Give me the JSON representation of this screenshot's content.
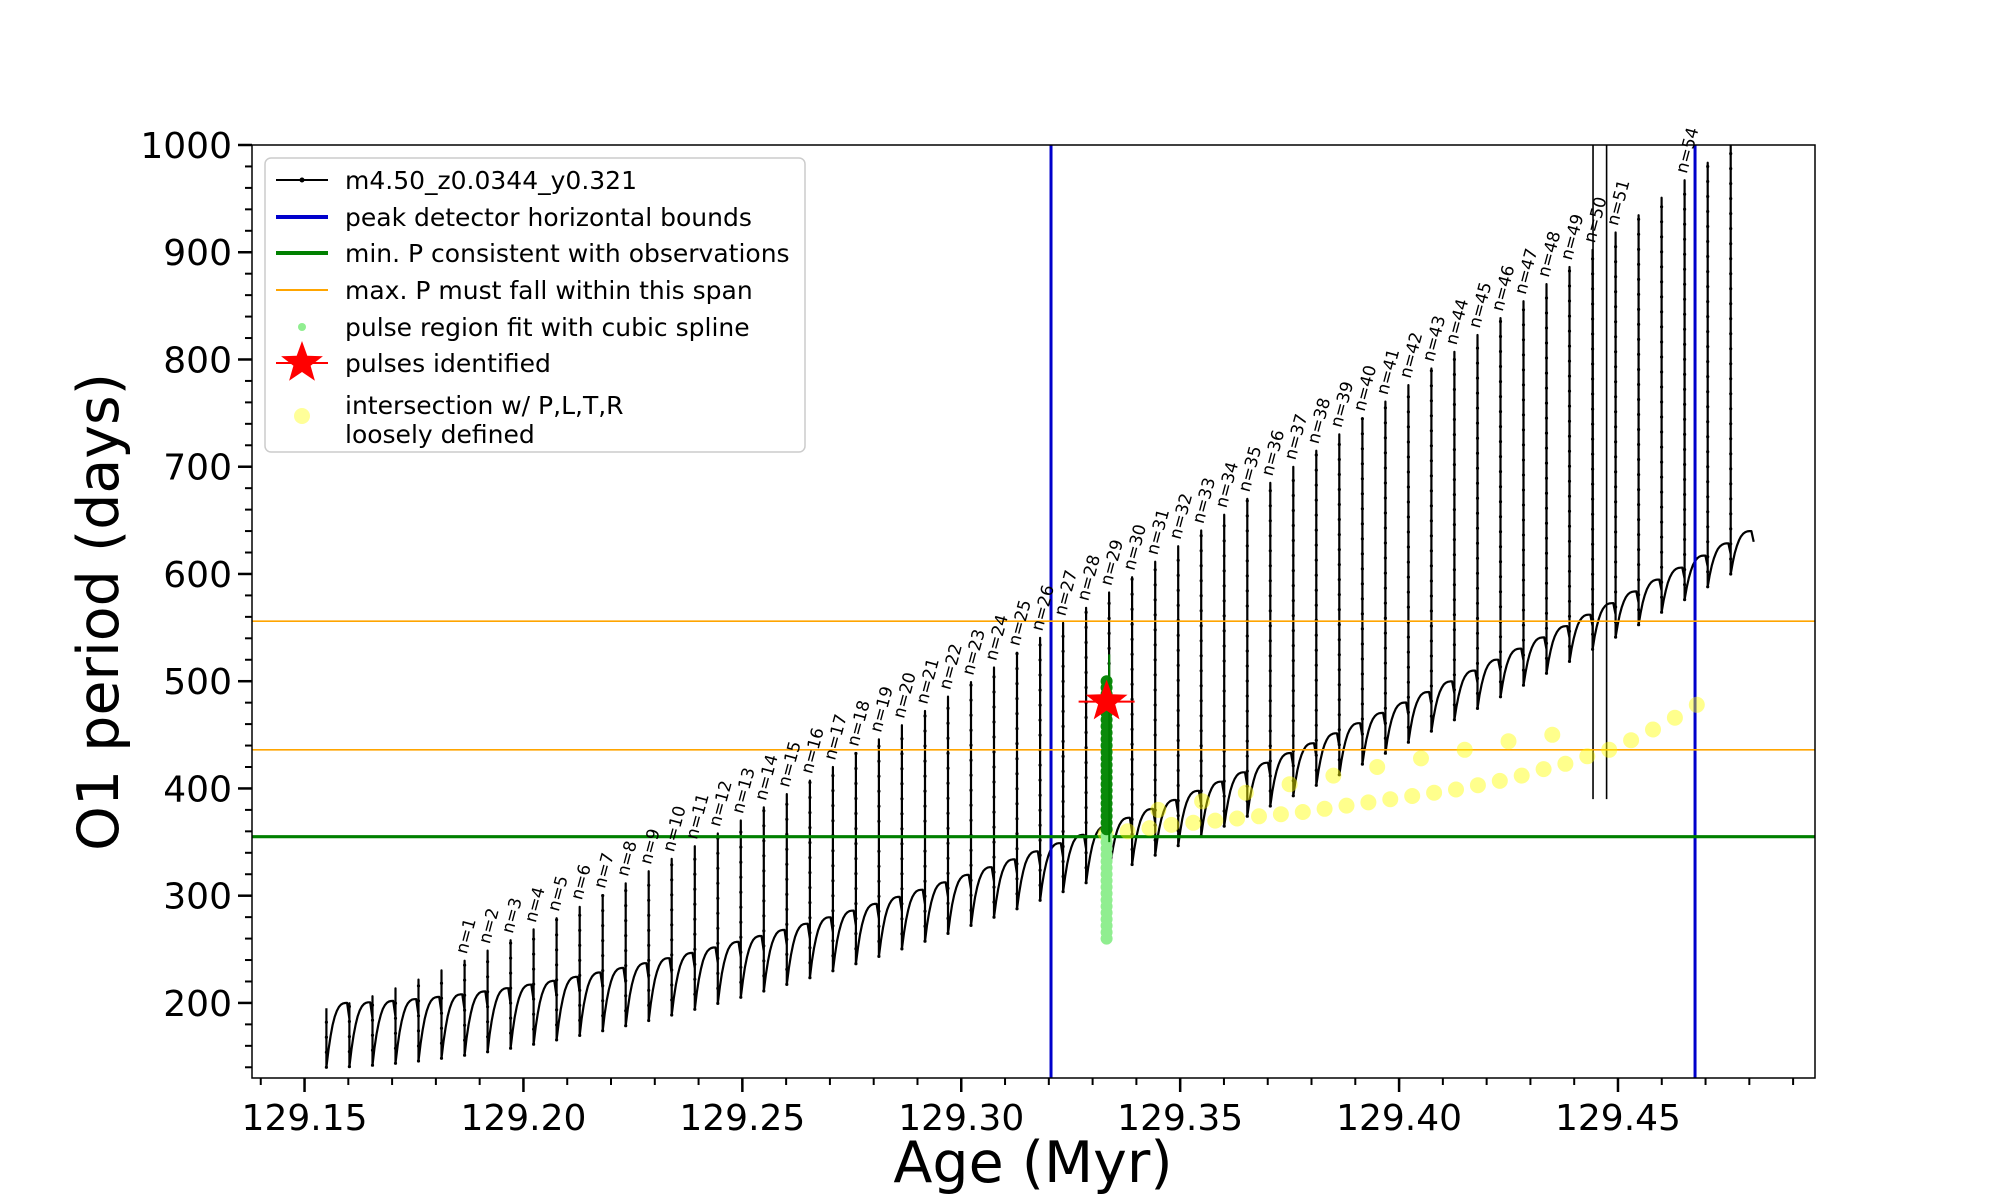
{
  "chart_data": {
    "type": "scatter",
    "title": "",
    "xlabel": "Age (Myr)",
    "ylabel": "O1 period (days)",
    "xlim": [
      129.138,
      129.495
    ],
    "ylim": [
      130,
      1000
    ],
    "xticks": [
      129.15,
      129.2,
      129.25,
      129.3,
      129.35,
      129.4,
      129.45
    ],
    "xtick_labels": [
      "129.15",
      "129.20",
      "129.25",
      "129.30",
      "129.35",
      "129.40",
      "129.45"
    ],
    "yticks": [
      200,
      300,
      400,
      500,
      600,
      700,
      800,
      900,
      1000
    ],
    "ytick_labels": [
      "200",
      "300",
      "400",
      "500",
      "600",
      "700",
      "800",
      "900",
      "1000"
    ],
    "grid": false,
    "legend_position": "top-left",
    "legend": [
      {
        "label": "m4.50_z0.0344_y0.321",
        "kind": "line-marker",
        "color": "#000000"
      },
      {
        "label": "peak detector horizontal bounds",
        "kind": "line",
        "color": "#0000cc"
      },
      {
        "label": "min. P consistent with observations",
        "kind": "line",
        "color": "#008000"
      },
      {
        "label": "max. P must fall within this span",
        "kind": "line",
        "color": "#ffa500"
      },
      {
        "label": "pulse region fit with cubic spline",
        "kind": "dot",
        "color": "#90ee90"
      },
      {
        "label": "pulses identified",
        "kind": "star",
        "color": "#ff0000"
      },
      {
        "label": "intersection w/ P,L,T,R\nloosely defined",
        "kind": "dot",
        "color": "#ffff99"
      }
    ],
    "vlines": {
      "color": "#0000cc",
      "x": [
        129.3205,
        129.4676
      ]
    },
    "hline_min": {
      "color": "#008000",
      "y": 355
    },
    "hlines_span": {
      "color": "#ffa500",
      "y": [
        436,
        556
      ]
    },
    "pulse_labels": [
      "n=1",
      "n=2",
      "n=3",
      "n=4",
      "n=5",
      "n=6",
      "n=7",
      "n=8",
      "n=9",
      "n=10",
      "n=11",
      "n=12",
      "n=13",
      "n=14",
      "n=15",
      "n=16",
      "n=17",
      "n=18",
      "n=19",
      "n=20",
      "n=21",
      "n=22",
      "n=23",
      "n=24",
      "n=25",
      "n=26",
      "n=27",
      "n=28",
      "n=29",
      "n=30",
      "n=31",
      "n=32",
      "n=33",
      "n=34",
      "n=35",
      "n=36",
      "n=37",
      "n=38",
      "n=39",
      "n=40",
      "n=41",
      "n=42",
      "n=43",
      "n=44",
      "n=45",
      "n=46",
      "n=47",
      "n=48",
      "n=49",
      "n=50",
      "n=51",
      "n=54"
    ],
    "pulses": {
      "age_start": 129.155,
      "age_end": 129.481,
      "count": 62,
      "base_start": 140,
      "base_end": 600,
      "peak_start": 200,
      "peak_end": 640,
      "spike_start": 195,
      "spike_end": 1000
    },
    "identified_pulse": {
      "x": 129.3332,
      "y": 481
    },
    "spline_region": {
      "x": 129.3332,
      "y_min": 260,
      "y_max": 500
    },
    "intersections": [
      {
        "x": 129.333,
        "y": 358
      },
      {
        "x": 129.338,
        "y": 360
      },
      {
        "x": 129.343,
        "y": 363
      },
      {
        "x": 129.348,
        "y": 366
      },
      {
        "x": 129.353,
        "y": 368
      },
      {
        "x": 129.358,
        "y": 370
      },
      {
        "x": 129.363,
        "y": 372
      },
      {
        "x": 129.368,
        "y": 374
      },
      {
        "x": 129.373,
        "y": 376
      },
      {
        "x": 129.378,
        "y": 378
      },
      {
        "x": 129.383,
        "y": 381
      },
      {
        "x": 129.388,
        "y": 384
      },
      {
        "x": 129.393,
        "y": 387
      },
      {
        "x": 129.398,
        "y": 390
      },
      {
        "x": 129.403,
        "y": 393
      },
      {
        "x": 129.408,
        "y": 396
      },
      {
        "x": 129.413,
        "y": 399
      },
      {
        "x": 129.418,
        "y": 403
      },
      {
        "x": 129.423,
        "y": 407
      },
      {
        "x": 129.428,
        "y": 412
      },
      {
        "x": 129.433,
        "y": 418
      },
      {
        "x": 129.438,
        "y": 423
      },
      {
        "x": 129.443,
        "y": 430
      },
      {
        "x": 129.448,
        "y": 436
      },
      {
        "x": 129.453,
        "y": 445
      },
      {
        "x": 129.458,
        "y": 455
      },
      {
        "x": 129.463,
        "y": 466
      },
      {
        "x": 129.468,
        "y": 478
      },
      {
        "x": 129.345,
        "y": 380
      },
      {
        "x": 129.355,
        "y": 388
      },
      {
        "x": 129.365,
        "y": 396
      },
      {
        "x": 129.375,
        "y": 404
      },
      {
        "x": 129.385,
        "y": 412
      },
      {
        "x": 129.395,
        "y": 420
      },
      {
        "x": 129.405,
        "y": 428
      },
      {
        "x": 129.415,
        "y": 436
      },
      {
        "x": 129.425,
        "y": 444
      },
      {
        "x": 129.435,
        "y": 450
      }
    ]
  }
}
